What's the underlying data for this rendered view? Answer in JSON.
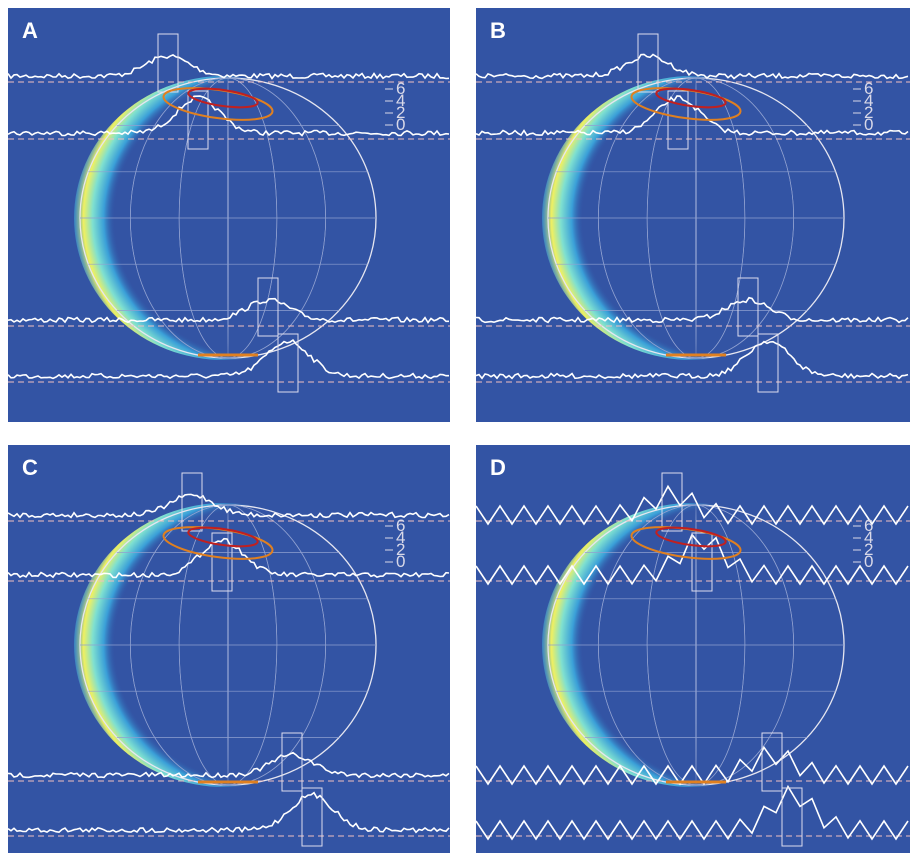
{
  "panels": [
    {
      "label": "A",
      "scale_labels": [
        6,
        4,
        2,
        0
      ]
    },
    {
      "label": "B",
      "scale_labels": [
        6,
        4,
        2,
        0
      ]
    },
    {
      "label": "C",
      "scale_labels": [
        6,
        4,
        2,
        0
      ]
    },
    {
      "label": "D",
      "scale_labels": [
        6,
        4,
        2,
        0
      ]
    }
  ]
}
